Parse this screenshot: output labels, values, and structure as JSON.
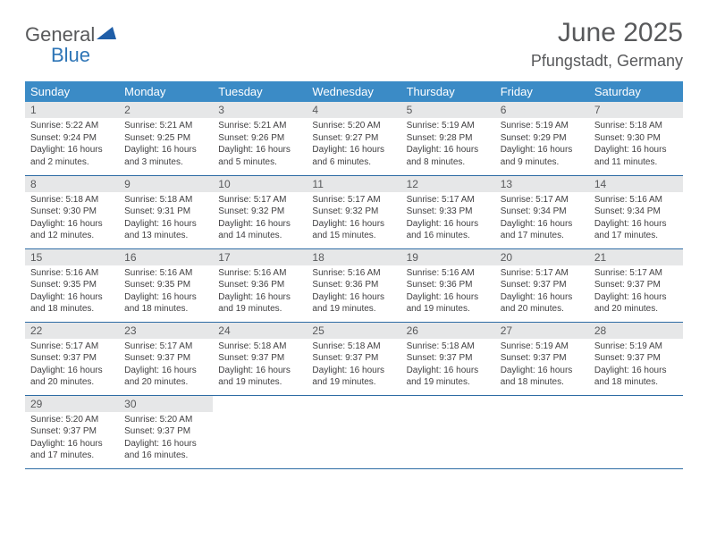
{
  "logo": {
    "gray": "General",
    "blue": "Blue"
  },
  "title": "June 2025",
  "location": "Pfungstadt, Germany",
  "colors": {
    "header_bg": "#3b8bc6",
    "row_border": "#2e6ca4",
    "daynum_bg": "#e6e7e8",
    "text_gray": "#58595b",
    "text_body": "#414042",
    "logo_blue": "#2e75b6",
    "logo_shape": "#1f5ea8"
  },
  "weekdays": [
    "Sunday",
    "Monday",
    "Tuesday",
    "Wednesday",
    "Thursday",
    "Friday",
    "Saturday"
  ],
  "weeks": [
    [
      {
        "n": "1",
        "sr": "5:22 AM",
        "ss": "9:24 PM",
        "dl": "16 hours and 2 minutes."
      },
      {
        "n": "2",
        "sr": "5:21 AM",
        "ss": "9:25 PM",
        "dl": "16 hours and 3 minutes."
      },
      {
        "n": "3",
        "sr": "5:21 AM",
        "ss": "9:26 PM",
        "dl": "16 hours and 5 minutes."
      },
      {
        "n": "4",
        "sr": "5:20 AM",
        "ss": "9:27 PM",
        "dl": "16 hours and 6 minutes."
      },
      {
        "n": "5",
        "sr": "5:19 AM",
        "ss": "9:28 PM",
        "dl": "16 hours and 8 minutes."
      },
      {
        "n": "6",
        "sr": "5:19 AM",
        "ss": "9:29 PM",
        "dl": "16 hours and 9 minutes."
      },
      {
        "n": "7",
        "sr": "5:18 AM",
        "ss": "9:30 PM",
        "dl": "16 hours and 11 minutes."
      }
    ],
    [
      {
        "n": "8",
        "sr": "5:18 AM",
        "ss": "9:30 PM",
        "dl": "16 hours and 12 minutes."
      },
      {
        "n": "9",
        "sr": "5:18 AM",
        "ss": "9:31 PM",
        "dl": "16 hours and 13 minutes."
      },
      {
        "n": "10",
        "sr": "5:17 AM",
        "ss": "9:32 PM",
        "dl": "16 hours and 14 minutes."
      },
      {
        "n": "11",
        "sr": "5:17 AM",
        "ss": "9:32 PM",
        "dl": "16 hours and 15 minutes."
      },
      {
        "n": "12",
        "sr": "5:17 AM",
        "ss": "9:33 PM",
        "dl": "16 hours and 16 minutes."
      },
      {
        "n": "13",
        "sr": "5:17 AM",
        "ss": "9:34 PM",
        "dl": "16 hours and 17 minutes."
      },
      {
        "n": "14",
        "sr": "5:16 AM",
        "ss": "9:34 PM",
        "dl": "16 hours and 17 minutes."
      }
    ],
    [
      {
        "n": "15",
        "sr": "5:16 AM",
        "ss": "9:35 PM",
        "dl": "16 hours and 18 minutes."
      },
      {
        "n": "16",
        "sr": "5:16 AM",
        "ss": "9:35 PM",
        "dl": "16 hours and 18 minutes."
      },
      {
        "n": "17",
        "sr": "5:16 AM",
        "ss": "9:36 PM",
        "dl": "16 hours and 19 minutes."
      },
      {
        "n": "18",
        "sr": "5:16 AM",
        "ss": "9:36 PM",
        "dl": "16 hours and 19 minutes."
      },
      {
        "n": "19",
        "sr": "5:16 AM",
        "ss": "9:36 PM",
        "dl": "16 hours and 19 minutes."
      },
      {
        "n": "20",
        "sr": "5:17 AM",
        "ss": "9:37 PM",
        "dl": "16 hours and 20 minutes."
      },
      {
        "n": "21",
        "sr": "5:17 AM",
        "ss": "9:37 PM",
        "dl": "16 hours and 20 minutes."
      }
    ],
    [
      {
        "n": "22",
        "sr": "5:17 AM",
        "ss": "9:37 PM",
        "dl": "16 hours and 20 minutes."
      },
      {
        "n": "23",
        "sr": "5:17 AM",
        "ss": "9:37 PM",
        "dl": "16 hours and 20 minutes."
      },
      {
        "n": "24",
        "sr": "5:18 AM",
        "ss": "9:37 PM",
        "dl": "16 hours and 19 minutes."
      },
      {
        "n": "25",
        "sr": "5:18 AM",
        "ss": "9:37 PM",
        "dl": "16 hours and 19 minutes."
      },
      {
        "n": "26",
        "sr": "5:18 AM",
        "ss": "9:37 PM",
        "dl": "16 hours and 19 minutes."
      },
      {
        "n": "27",
        "sr": "5:19 AM",
        "ss": "9:37 PM",
        "dl": "16 hours and 18 minutes."
      },
      {
        "n": "28",
        "sr": "5:19 AM",
        "ss": "9:37 PM",
        "dl": "16 hours and 18 minutes."
      }
    ],
    [
      {
        "n": "29",
        "sr": "5:20 AM",
        "ss": "9:37 PM",
        "dl": "16 hours and 17 minutes."
      },
      {
        "n": "30",
        "sr": "5:20 AM",
        "ss": "9:37 PM",
        "dl": "16 hours and 16 minutes."
      },
      null,
      null,
      null,
      null,
      null
    ]
  ],
  "labels": {
    "sunrise": "Sunrise: ",
    "sunset": "Sunset: ",
    "daylight": "Daylight: "
  }
}
